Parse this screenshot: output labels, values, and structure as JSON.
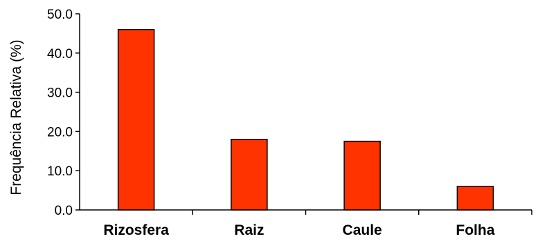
{
  "chart_data": {
    "type": "bar",
    "title": "",
    "xlabel": "",
    "ylabel": "Frequência Relativa (%)",
    "categories": [
      "Rizosfera",
      "Raiz",
      "Caule",
      "Folha"
    ],
    "values": [
      46.0,
      18.0,
      17.5,
      6.0
    ],
    "ylim": [
      0,
      50
    ],
    "yticks": [
      "0.0",
      "10.0",
      "20.0",
      "30.0",
      "40.0",
      "50.0"
    ],
    "grid": false,
    "legend": "none",
    "bar_color": "#ff3300",
    "bar_stroke": "#000000"
  }
}
